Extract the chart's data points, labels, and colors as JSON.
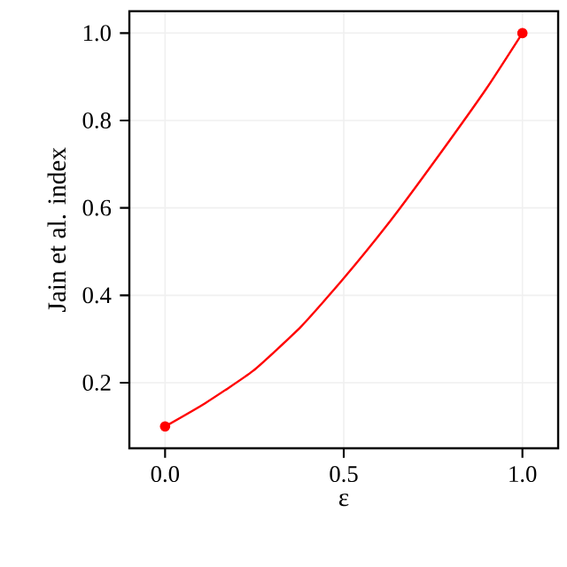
{
  "chart_data": {
    "type": "line",
    "xlabel": "ε",
    "ylabel": "Jain et al. index",
    "series": [
      {
        "color": "#ff0000",
        "x": [
          0,
          0.112,
          0.246,
          0.38,
          0.497,
          0.631,
          0.765,
          0.9,
          1.0
        ],
        "values": [
          0.1,
          0.153,
          0.227,
          0.328,
          0.436,
          0.571,
          0.719,
          0.874,
          1.0
        ]
      },
      {
        "type": "scatter",
        "color": "#ff0000",
        "marker": "circle",
        "x": [
          0,
          1.0
        ],
        "values": [
          0.1,
          1.0
        ]
      }
    ],
    "xlim": [
      -0.1,
      1.1
    ],
    "ylim": [
      0.05,
      1.05
    ],
    "xticks": [
      {
        "value": 0,
        "label": "0.0"
      },
      {
        "value": 0.5,
        "label": "0.5"
      },
      {
        "value": 1.0,
        "label": "1.0"
      }
    ],
    "yticks": [
      {
        "value": 0.2,
        "label": "0.2"
      },
      {
        "value": 0.4,
        "label": "0.4"
      },
      {
        "value": 0.6,
        "label": "0.6"
      },
      {
        "value": 0.8,
        "label": "0.8"
      },
      {
        "value": 1.0,
        "label": "1.0"
      }
    ],
    "grid": true
  }
}
